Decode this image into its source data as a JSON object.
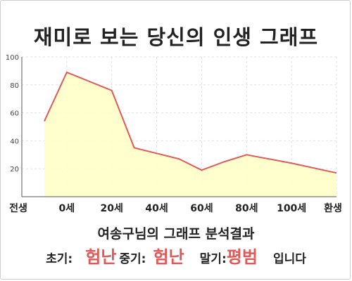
{
  "title": "재미로 보는 당신의 인생 그래프",
  "chart_data": {
    "type": "area",
    "x": [
      "전생",
      "0세",
      "20세",
      "40세",
      "60세",
      "80세",
      "100세",
      "환생"
    ],
    "points": [
      {
        "x": -10,
        "y": 54
      },
      {
        "x": 0,
        "y": 89
      },
      {
        "x": 20,
        "y": 76
      },
      {
        "x": 30,
        "y": 35
      },
      {
        "x": 40,
        "y": 31
      },
      {
        "x": 50,
        "y": 27
      },
      {
        "x": 60,
        "y": 19
      },
      {
        "x": 70,
        "y": 25
      },
      {
        "x": 80,
        "y": 30
      },
      {
        "x": 100,
        "y": 24
      },
      {
        "x": 120,
        "y": 17
      }
    ],
    "xlim": [
      -20,
      120
    ],
    "ylim": [
      0,
      100
    ],
    "yticks": [
      20,
      40,
      60,
      80,
      100
    ],
    "grid": true,
    "line_color": "#e05a5a",
    "fill_color": "#ffffc6"
  },
  "result": {
    "heading": "여송구님의 그래프 분석결과",
    "early_label": "초기:",
    "early_value": "험난",
    "middle_label": "중기:",
    "middle_value": "험난",
    "late_label": "말기:",
    "late_value": "평범",
    "suffix": "입니다"
  }
}
